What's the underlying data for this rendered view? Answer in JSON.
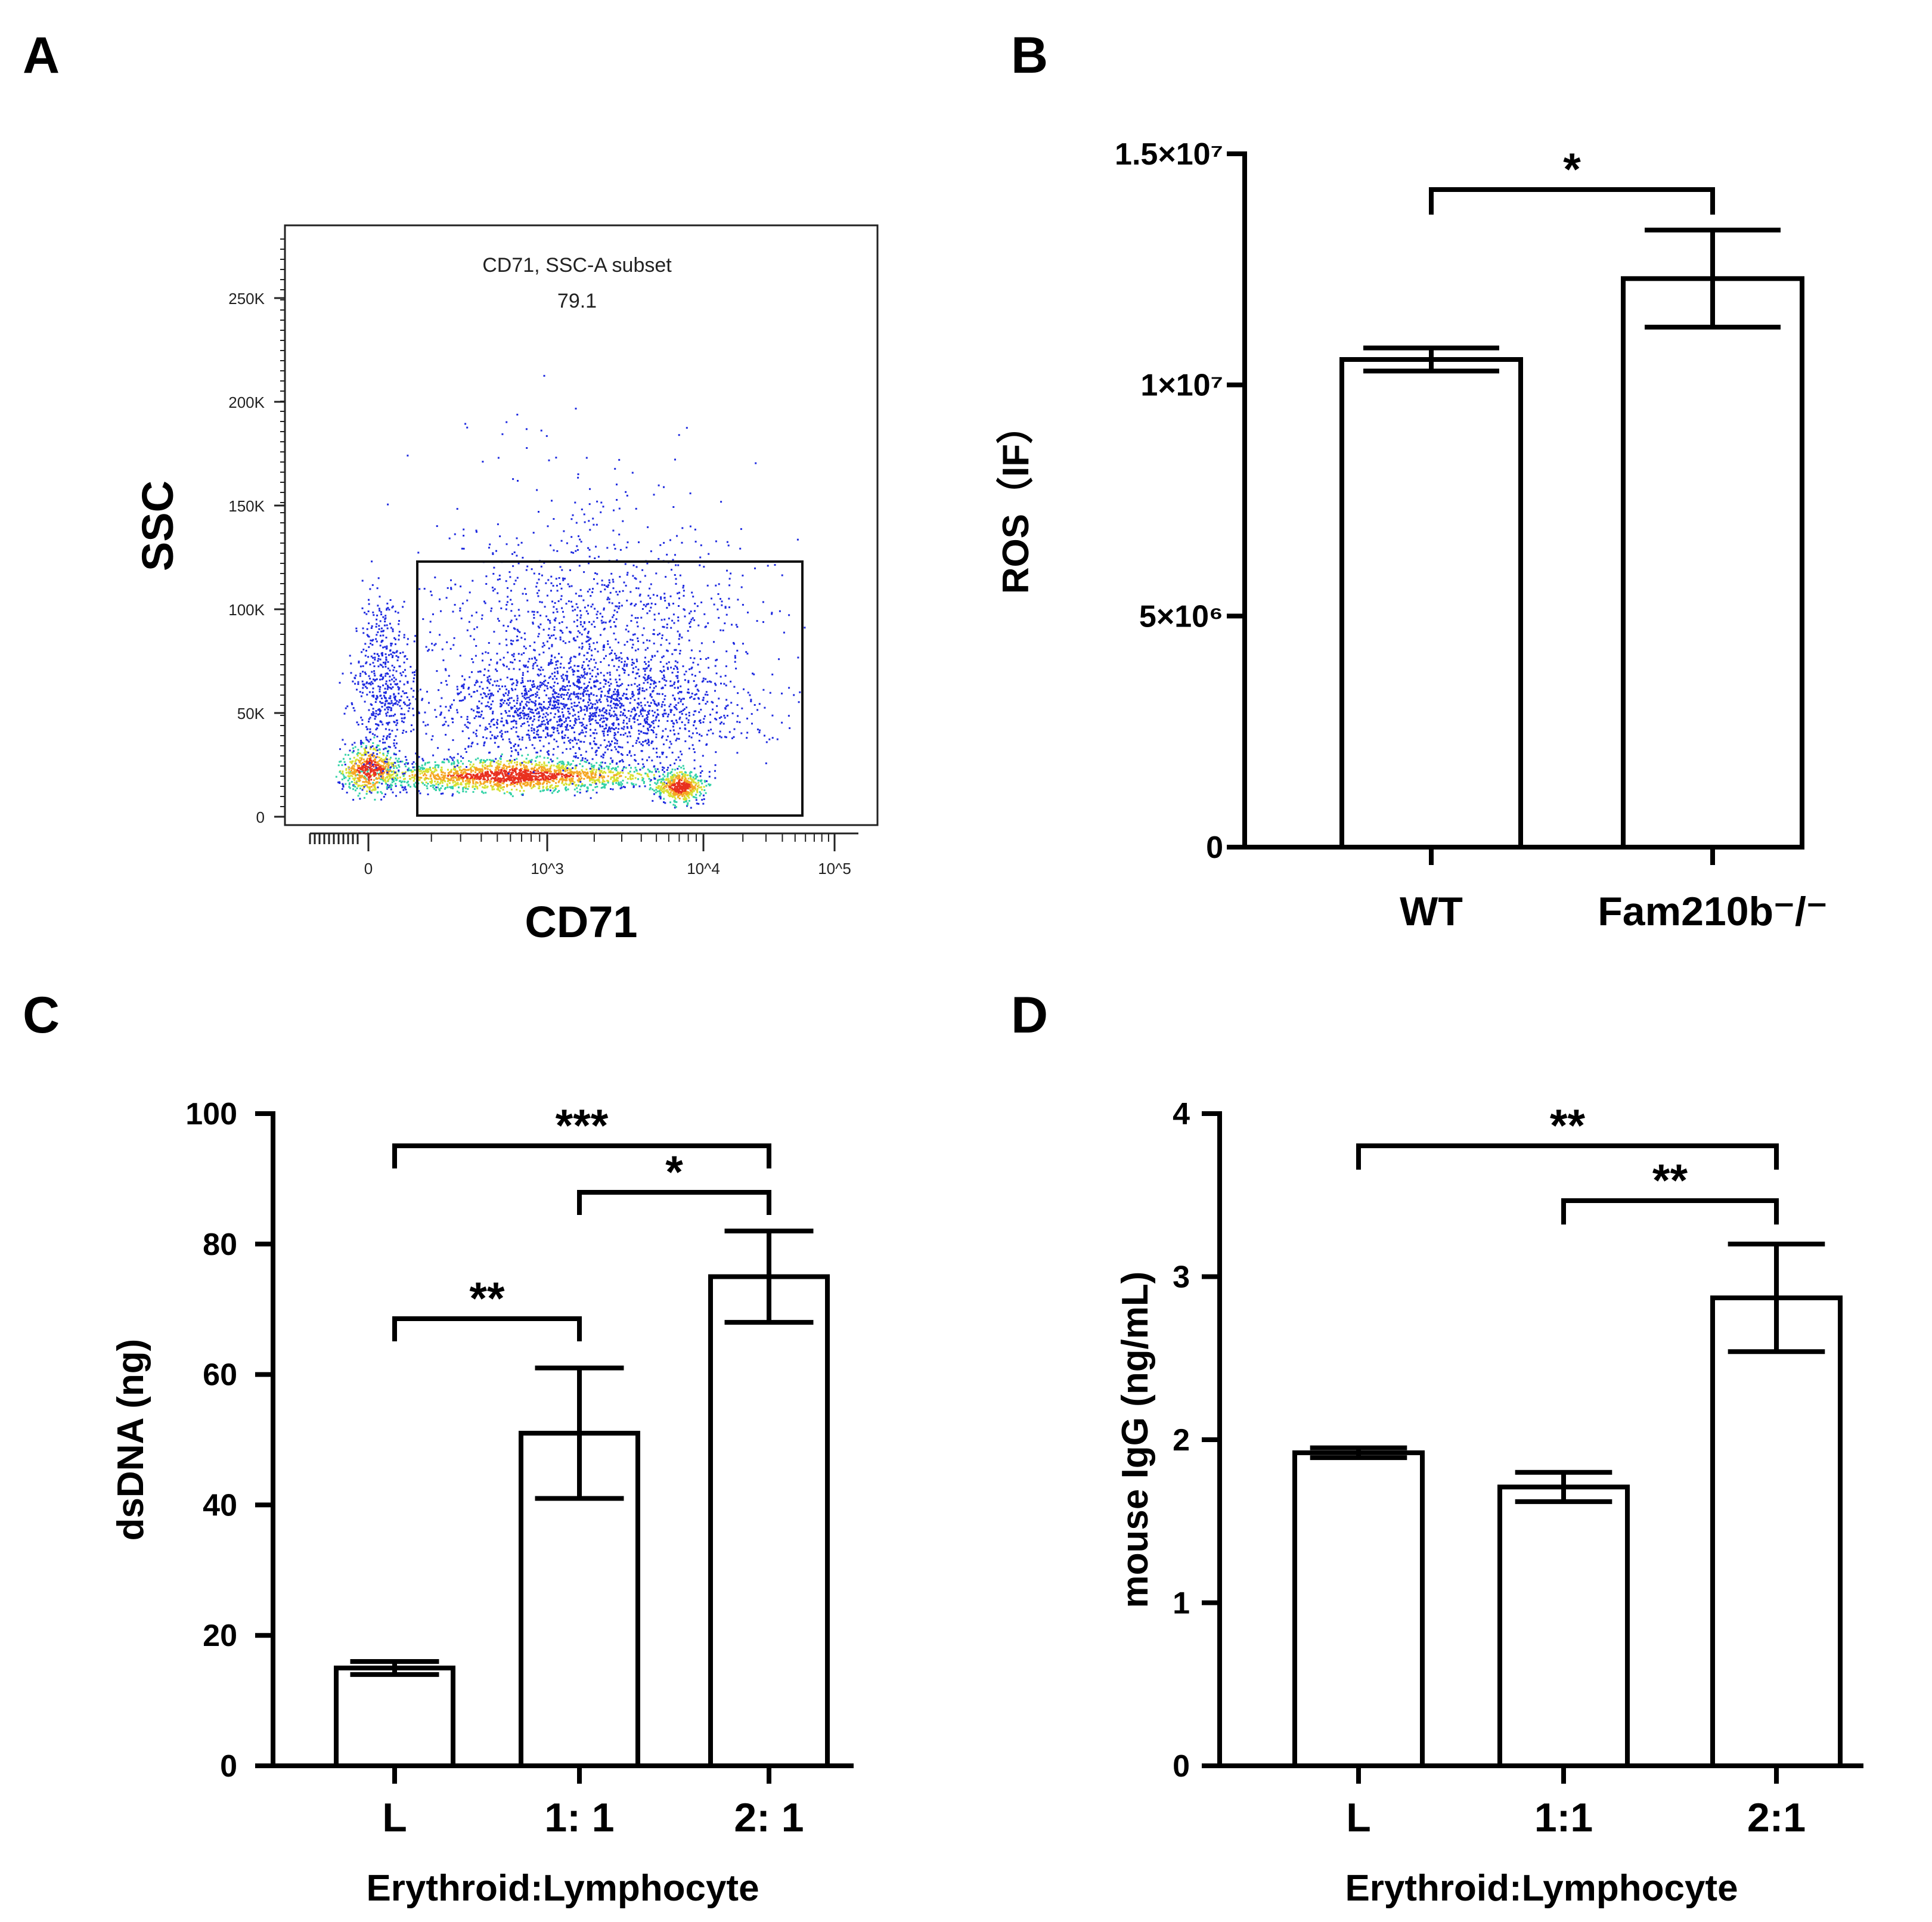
{
  "panels": {
    "a": "A",
    "b": "B",
    "c": "C",
    "d": "D"
  },
  "chart_data": [
    {
      "type": "scatter",
      "panel": "A",
      "title": "",
      "xlabel": "CD71",
      "ylabel": "SSC",
      "x_ticks": [
        "0",
        "10^3",
        "10^4",
        "10^5"
      ],
      "y_ticks": [
        "0",
        "50K",
        "100K",
        "150K",
        "200K",
        "250K"
      ],
      "gate_label": "CD71, SSC-A subset",
      "gate_value": "79.1"
    },
    {
      "type": "bar",
      "panel": "B",
      "ylabel": "ROS（IF）",
      "ylim": [
        0,
        15000000
      ],
      "y_ticks": [
        {
          "value": 0,
          "label": "0"
        },
        {
          "value": 5000000,
          "label": "5×10⁶"
        },
        {
          "value": 10000000,
          "label": "1×10⁷"
        },
        {
          "value": 15000000,
          "label": "1.5×10⁷"
        }
      ],
      "categories": [
        "WT",
        "Fam210b⁻/⁻"
      ],
      "values": [
        10550000,
        12300000
      ],
      "errors": [
        250000,
        1050000
      ],
      "significance": [
        {
          "from": 0,
          "to": 1,
          "label": "*"
        }
      ]
    },
    {
      "type": "bar",
      "panel": "C",
      "xlabel": "Erythroid:Lymphocyte",
      "ylabel": "dsDNA (ng)",
      "ylim": [
        0,
        100
      ],
      "y_ticks": [
        {
          "value": 0,
          "label": "0"
        },
        {
          "value": 20,
          "label": "20"
        },
        {
          "value": 40,
          "label": "40"
        },
        {
          "value": 60,
          "label": "60"
        },
        {
          "value": 80,
          "label": "80"
        },
        {
          "value": 100,
          "label": "100"
        }
      ],
      "categories": [
        "L",
        "1: 1",
        "2: 1"
      ],
      "values": [
        15,
        51,
        75
      ],
      "errors": [
        1,
        10,
        7
      ],
      "significance": [
        {
          "from": 0,
          "to": 1,
          "label": "**"
        },
        {
          "from": 1,
          "to": 2,
          "label": "*"
        },
        {
          "from": 0,
          "to": 2,
          "label": "***"
        }
      ]
    },
    {
      "type": "bar",
      "panel": "D",
      "xlabel": "Erythroid:Lymphocyte",
      "ylabel": "mouse IgG (ng/mL)",
      "ylim": [
        0,
        4
      ],
      "y_ticks": [
        {
          "value": 0,
          "label": "0"
        },
        {
          "value": 1,
          "label": "1"
        },
        {
          "value": 2,
          "label": "2"
        },
        {
          "value": 3,
          "label": "3"
        },
        {
          "value": 4,
          "label": "4"
        }
      ],
      "categories": [
        "L",
        "1:1",
        "2:1"
      ],
      "values": [
        1.92,
        1.71,
        2.87
      ],
      "errors": [
        0.03,
        0.09,
        0.33
      ],
      "significance": [
        {
          "from": 1,
          "to": 2,
          "label": "**"
        },
        {
          "from": 0,
          "to": 2,
          "label": "**"
        }
      ]
    }
  ]
}
